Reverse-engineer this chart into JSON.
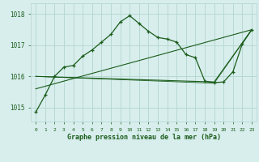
{
  "title": "Graphe pression niveau de la mer (hPa)",
  "bg_color": "#d8eeed",
  "grid_color": "#b8d8d4",
  "line_color": "#1a5c1a",
  "x_ticks": [
    0,
    1,
    2,
    3,
    4,
    5,
    6,
    7,
    8,
    9,
    10,
    11,
    12,
    13,
    14,
    15,
    16,
    17,
    18,
    19,
    20,
    21,
    22,
    23
  ],
  "y_ticks": [
    1015,
    1016,
    1017,
    1018
  ],
  "ylim": [
    1014.55,
    1018.35
  ],
  "xlim": [
    -0.5,
    23.5
  ],
  "series1_x": [
    0,
    1,
    2,
    3,
    4,
    5,
    6,
    7,
    8,
    9,
    10,
    11,
    12,
    13,
    14,
    15,
    16,
    17,
    18,
    19,
    20,
    21,
    22,
    23
  ],
  "series1_y": [
    1014.85,
    1015.4,
    1016.0,
    1016.3,
    1016.35,
    1016.65,
    1016.85,
    1017.1,
    1017.35,
    1017.75,
    1017.95,
    1017.7,
    1017.45,
    1017.25,
    1017.2,
    1017.1,
    1016.7,
    1016.6,
    1015.85,
    1015.8,
    1015.82,
    1016.15,
    1017.05,
    1017.5
  ],
  "series2_x": [
    0,
    23
  ],
  "series2_y": [
    1015.6,
    1017.5
  ],
  "series3_x": [
    0,
    19,
    23
  ],
  "series3_y": [
    1016.0,
    1015.82,
    1017.5
  ],
  "series4_x": [
    0,
    19,
    23
  ],
  "series4_y": [
    1016.0,
    1015.78,
    1017.5
  ]
}
